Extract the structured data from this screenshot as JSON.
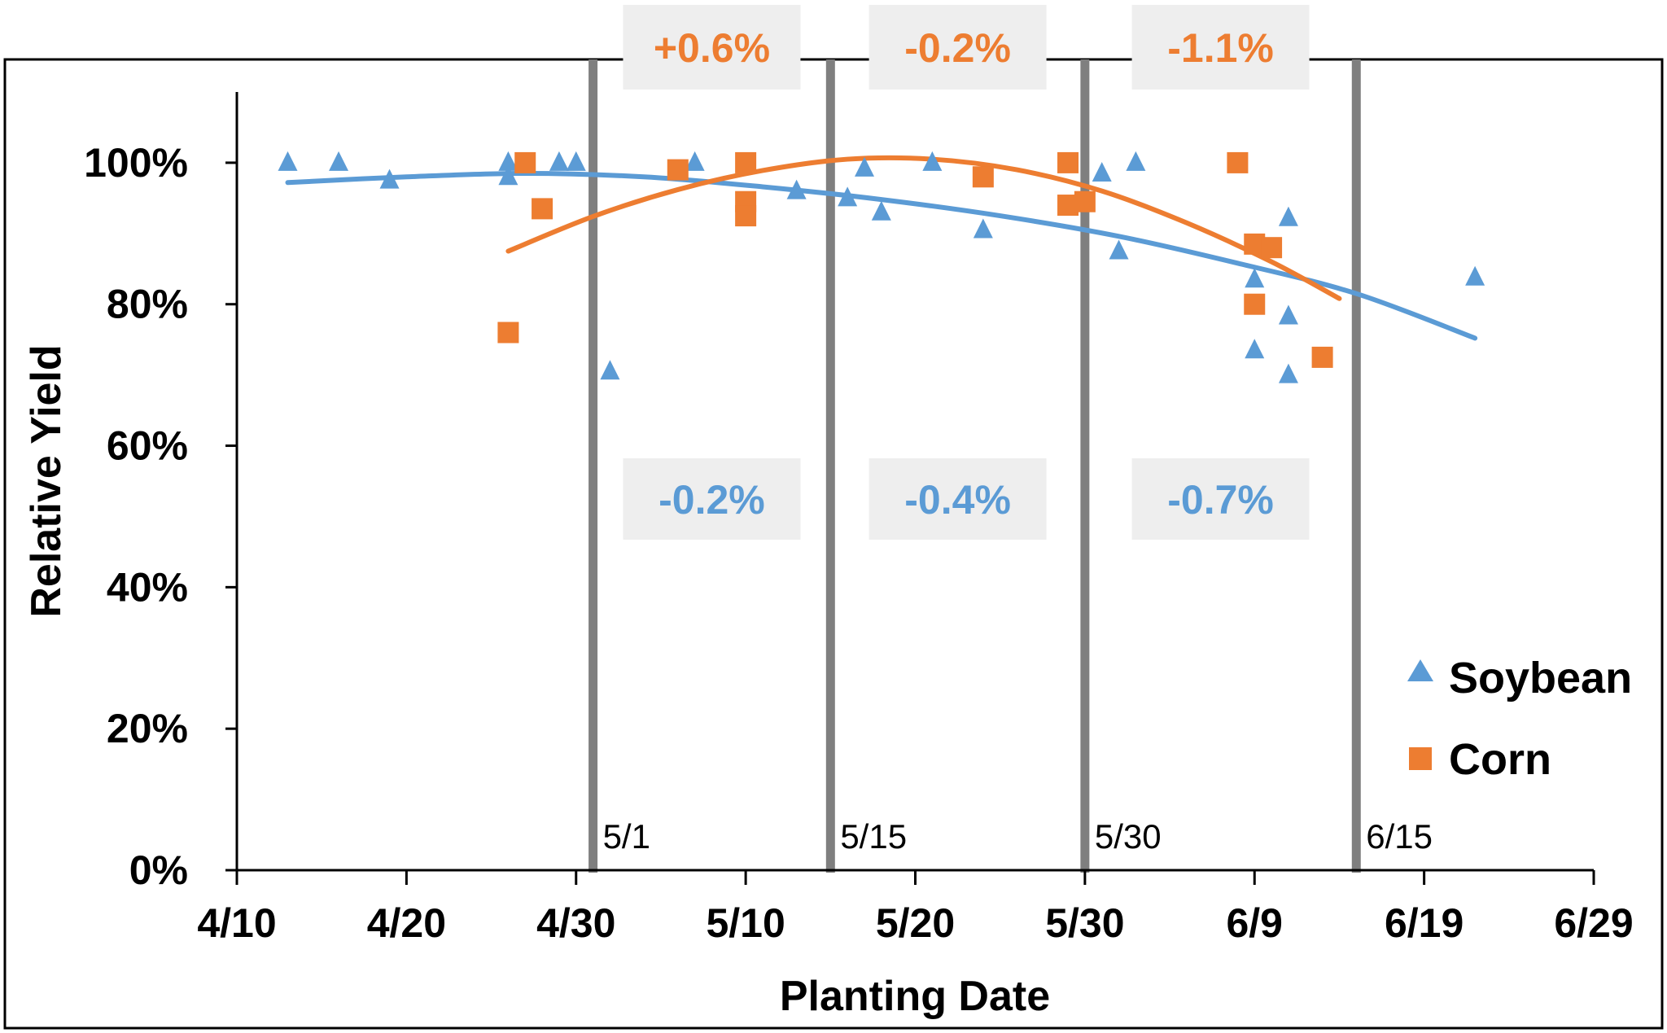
{
  "chart_data": {
    "type": "scatter",
    "title": "",
    "xlabel": "Planting Date",
    "ylabel": "Relative Yield",
    "x_ticks": [
      "4/10",
      "4/20",
      "4/30",
      "5/10",
      "5/20",
      "5/30",
      "6/9",
      "6/19",
      "6/29"
    ],
    "y_ticks": [
      "0%",
      "20%",
      "40%",
      "60%",
      "80%",
      "100%"
    ],
    "xlim": [
      "4/10",
      "6/29"
    ],
    "ylim": [
      0,
      110
    ],
    "legend_position": "bottom-right",
    "colors": {
      "soybean": "#5B9BD5",
      "corn": "#ED7D31",
      "vline": "#7f7f7f",
      "box": "#eeeeee"
    },
    "series": [
      {
        "name": "Soybean",
        "marker": "triangle",
        "points": [
          {
            "x": "4/13",
            "y": 100
          },
          {
            "x": "4/16",
            "y": 100
          },
          {
            "x": "4/19",
            "y": 97.5
          },
          {
            "x": "4/26",
            "y": 100
          },
          {
            "x": "4/26",
            "y": 98
          },
          {
            "x": "4/29",
            "y": 100
          },
          {
            "x": "4/30",
            "y": 100
          },
          {
            "x": "5/2",
            "y": 70.5
          },
          {
            "x": "5/7",
            "y": 100
          },
          {
            "x": "5/13",
            "y": 96
          },
          {
            "x": "5/16",
            "y": 95
          },
          {
            "x": "5/17",
            "y": 99.2
          },
          {
            "x": "5/18",
            "y": 93
          },
          {
            "x": "5/21",
            "y": 100
          },
          {
            "x": "5/24",
            "y": 90.5
          },
          {
            "x": "5/31",
            "y": 98.5
          },
          {
            "x": "6/1",
            "y": 87.5
          },
          {
            "x": "6/2",
            "y": 100
          },
          {
            "x": "6/9",
            "y": 83.5
          },
          {
            "x": "6/9",
            "y": 73.5
          },
          {
            "x": "6/11",
            "y": 92.2
          },
          {
            "x": "6/11",
            "y": 78.3
          },
          {
            "x": "6/11",
            "y": 70
          },
          {
            "x": "6/22",
            "y": 83.8
          }
        ],
        "trend": [
          {
            "x": "4/13",
            "y": 97.2
          },
          {
            "x": "4/20",
            "y": 98.0
          },
          {
            "x": "4/27",
            "y": 98.5
          },
          {
            "x": "5/4",
            "y": 98.0
          },
          {
            "x": "5/11",
            "y": 96.6
          },
          {
            "x": "5/18",
            "y": 94.8
          },
          {
            "x": "5/25",
            "y": 92.5
          },
          {
            "x": "6/1",
            "y": 89.6
          },
          {
            "x": "6/8",
            "y": 85.8
          },
          {
            "x": "6/15",
            "y": 81.5
          },
          {
            "x": "6/22",
            "y": 75.2
          }
        ]
      },
      {
        "name": "Corn",
        "marker": "square",
        "points": [
          {
            "x": "4/26",
            "y": 76
          },
          {
            "x": "4/27",
            "y": 100
          },
          {
            "x": "4/28",
            "y": 93.5
          },
          {
            "x": "5/6",
            "y": 99
          },
          {
            "x": "5/10",
            "y": 100
          },
          {
            "x": "5/10",
            "y": 94.5
          },
          {
            "x": "5/10",
            "y": 92.5
          },
          {
            "x": "5/24",
            "y": 98
          },
          {
            "x": "5/29",
            "y": 100
          },
          {
            "x": "5/29",
            "y": 94
          },
          {
            "x": "5/30",
            "y": 94.5
          },
          {
            "x": "6/8",
            "y": 100
          },
          {
            "x": "6/9",
            "y": 88.5
          },
          {
            "x": "6/9",
            "y": 80
          },
          {
            "x": "6/10",
            "y": 88
          },
          {
            "x": "6/13",
            "y": 72.5
          }
        ],
        "trend": [
          {
            "x": "4/26",
            "y": 87.5
          },
          {
            "x": "5/1",
            "y": 92.4
          },
          {
            "x": "5/6",
            "y": 96.2
          },
          {
            "x": "5/11",
            "y": 98.9
          },
          {
            "x": "5/16",
            "y": 100.5
          },
          {
            "x": "5/21",
            "y": 100.5
          },
          {
            "x": "5/26",
            "y": 99.0
          },
          {
            "x": "5/31",
            "y": 96.0
          },
          {
            "x": "6/5",
            "y": 91.5
          },
          {
            "x": "6/10",
            "y": 86.0
          },
          {
            "x": "6/14",
            "y": 80.8
          }
        ]
      }
    ],
    "vlines": [
      {
        "x": "5/1",
        "label": "5/1"
      },
      {
        "x": "5/15",
        "label": "5/15"
      },
      {
        "x": "5/30",
        "label": "5/30"
      },
      {
        "x": "6/15",
        "label": "6/15"
      }
    ],
    "annotations": [
      {
        "text": "+0.6%",
        "series": "Corn",
        "interval": [
          "5/1",
          "5/15"
        ],
        "position": "top"
      },
      {
        "text": "-0.2%",
        "series": "Corn",
        "interval": [
          "5/15",
          "5/30"
        ],
        "position": "top"
      },
      {
        "text": "-1.1%",
        "series": "Corn",
        "interval": [
          "5/30",
          "6/15"
        ],
        "position": "top"
      },
      {
        "text": "-0.2%",
        "series": "Soybean",
        "interval": [
          "5/1",
          "5/15"
        ],
        "position": "middle"
      },
      {
        "text": "-0.4%",
        "series": "Soybean",
        "interval": [
          "5/15",
          "5/30"
        ],
        "position": "middle"
      },
      {
        "text": "-0.7%",
        "series": "Soybean",
        "interval": [
          "5/30",
          "6/15"
        ],
        "position": "middle"
      }
    ],
    "legend": [
      "Soybean",
      "Corn"
    ]
  }
}
